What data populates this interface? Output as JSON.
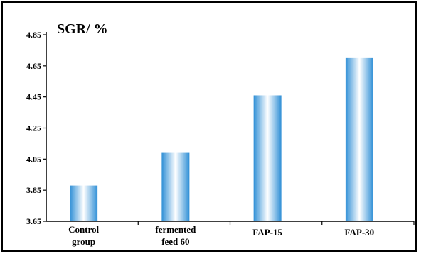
{
  "chart_data": {
    "type": "bar",
    "title": "SGR/ %",
    "categories": [
      [
        "Control",
        "group"
      ],
      [
        "fermented",
        "feed 60"
      ],
      [
        "FAP-15"
      ],
      [
        "FAP-30"
      ]
    ],
    "values": [
      3.88,
      4.09,
      4.46,
      4.7
    ],
    "yticks": [
      "3.65",
      "3.85",
      "4.05",
      "4.25",
      "4.45",
      "4.65",
      "4.85"
    ],
    "ylim": [
      3.65,
      4.85
    ],
    "xlabel": "",
    "ylabel": "",
    "grid": false,
    "legend": "none",
    "colors": {
      "bar_edge": "#2f8fd6",
      "bar_center": "#ffffff",
      "axis": "#000000"
    }
  }
}
